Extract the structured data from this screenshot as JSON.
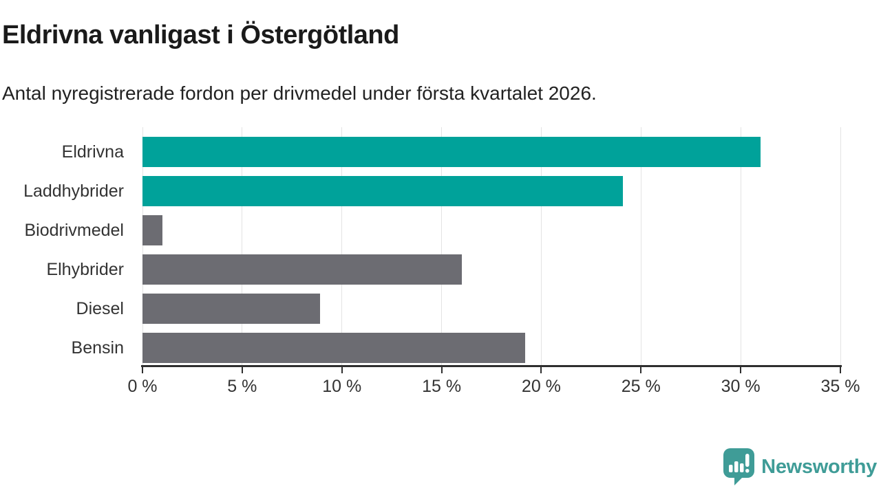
{
  "header": {
    "title": "Eldrivna vanligast i Östergötland",
    "subtitle": "Antal nyregistrerade fordon per drivmedel under första kvartalet 2026."
  },
  "chart_data": {
    "type": "bar",
    "orientation": "horizontal",
    "title": "Eldrivna vanligast i Östergötland",
    "subtitle": "Antal nyregistrerade fordon per drivmedel under första kvartalet 2026.",
    "categories": [
      "Eldrivna",
      "Laddhybrider",
      "Biodrivmedel",
      "Elhybrider",
      "Diesel",
      "Bensin"
    ],
    "values": [
      31.0,
      24.1,
      1.0,
      16.0,
      8.9,
      19.2
    ],
    "unit": "%",
    "xlim": [
      0,
      35
    ],
    "x_ticks": [
      0,
      5,
      10,
      15,
      20,
      25,
      30,
      35
    ],
    "x_tick_suffix": " %",
    "grid": true,
    "legend": false,
    "highlighted_categories": [
      "Eldrivna",
      "Laddhybrider"
    ],
    "bar_colors": [
      "#00a29a",
      "#00a29a",
      "#6c6c72",
      "#6c6c72",
      "#6c6c72",
      "#6c6c72"
    ],
    "colors": {
      "highlight": "#00a29a",
      "default": "#6c6c72",
      "gridline": "#e3e3e3",
      "axis": "#2e2e2e",
      "tick_label": "#333333",
      "category_label": "#333333"
    }
  },
  "footer": {
    "brand": "Newsworthy",
    "brand_color": "#3f9c97",
    "logo_icon": "newsworthy-speech-bubble-chart-icon"
  }
}
